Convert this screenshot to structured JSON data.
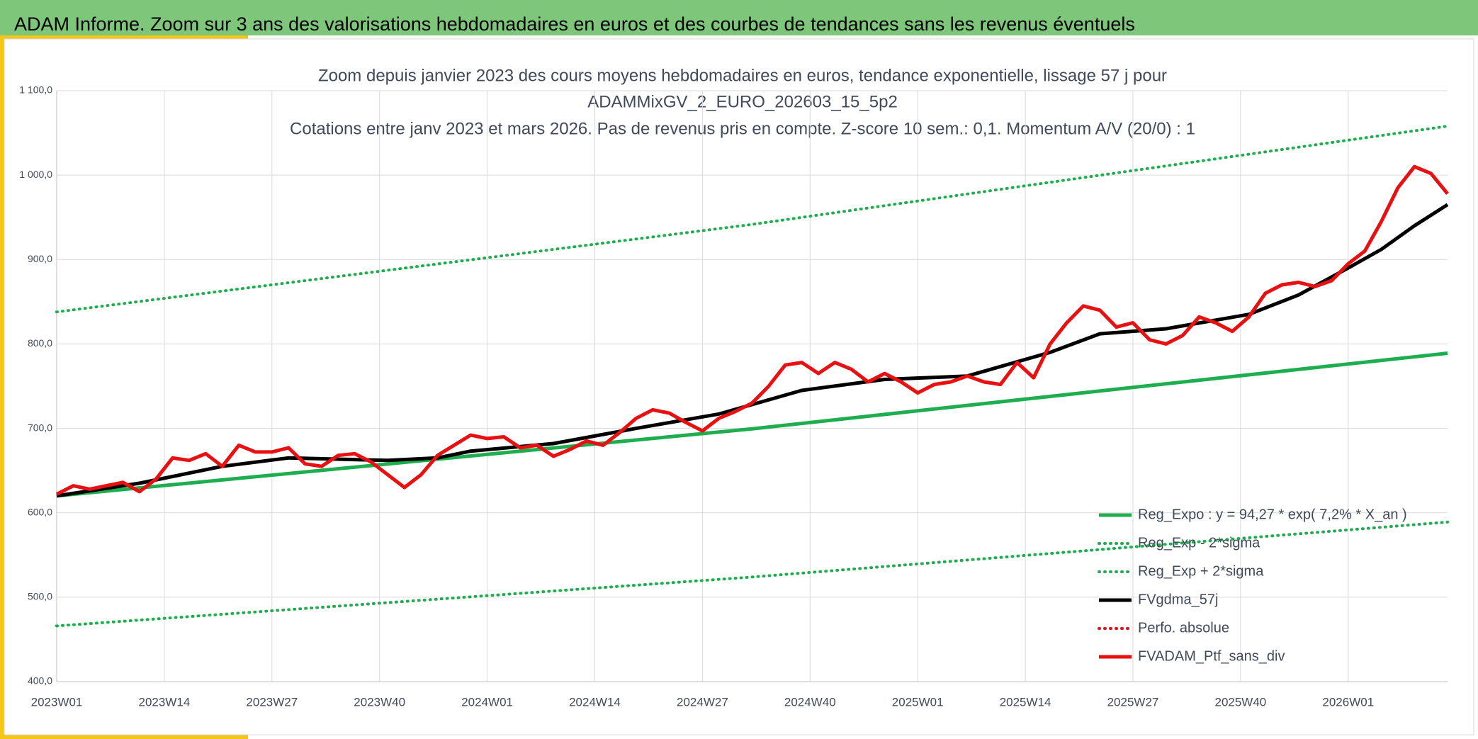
{
  "header": {
    "title": "ADAM Informe. Zoom sur 3 ans des valorisations hebdomadaires en euros et des courbes de tendances sans les revenus éventuels"
  },
  "chart_data": {
    "type": "line",
    "title": [
      "Zoom depuis janvier 2023 des cours moyens hebdomadaires en euros, tendance exponentielle, lissage 57 j pour",
      "ADAMMixGV_2_EURO_202603_15_5p2",
      "Cotations entre janv 2023 et mars 2026. Pas de revenus pris en compte. Z-score 10 sem.: 0,1. Momentum A/V (20/0) : 1"
    ],
    "xlim": [
      0,
      168
    ],
    "xticks": [
      {
        "value": 0,
        "label": "2023W01"
      },
      {
        "value": 13,
        "label": "2023W14"
      },
      {
        "value": 26,
        "label": "2023W27"
      },
      {
        "value": 39,
        "label": "2023W40"
      },
      {
        "value": 52,
        "label": "2024W01"
      },
      {
        "value": 65,
        "label": "2024W14"
      },
      {
        "value": 78,
        "label": "2024W27"
      },
      {
        "value": 91,
        "label": "2024W40"
      },
      {
        "value": 104,
        "label": "2025W01"
      },
      {
        "value": 117,
        "label": "2025W14"
      },
      {
        "value": 130,
        "label": "2025W27"
      },
      {
        "value": 143,
        "label": "2025W40"
      },
      {
        "value": 156,
        "label": "2026W01"
      }
    ],
    "ylim": [
      400,
      1100
    ],
    "yticks": [
      {
        "value": 400,
        "label": "400,0"
      },
      {
        "value": 500,
        "label": "500,0"
      },
      {
        "value": 600,
        "label": "600,0"
      },
      {
        "value": 700,
        "label": "700,0"
      },
      {
        "value": 800,
        "label": "800,0"
      },
      {
        "value": 900,
        "label": "900,0"
      },
      {
        "value": 1000,
        "label": "1 000,0"
      },
      {
        "value": 1100,
        "label": "1 100,0"
      }
    ],
    "grid": true,
    "legend": "bottom-right",
    "series": [
      {
        "name": "Reg_Expo : y = 94,27 * exp( 7,2% *  X_an )",
        "color": "#1fae4f",
        "style": "solid",
        "x": [
          0,
          84,
          168
        ],
        "values": [
          620,
          699.5,
          789
        ]
      },
      {
        "name": "Reg_Exp - 2*sigma",
        "color": "#1fae4f",
        "style": "dotted",
        "x": [
          0,
          84,
          168
        ],
        "values": [
          466,
          523.9,
          589
        ]
      },
      {
        "name": "Reg_Exp + 2*sigma",
        "color": "#1fae4f",
        "style": "dotted",
        "x": [
          0,
          84,
          168
        ],
        "values": [
          838,
          941.6,
          1058
        ]
      },
      {
        "name": "FVgdma_57j",
        "color": "#000000",
        "style": "solid",
        "x": [
          0,
          10,
          20,
          28,
          40,
          46,
          50,
          60,
          70,
          80,
          90,
          100,
          110,
          120,
          126,
          134,
          144,
          150,
          156,
          160,
          164,
          168
        ],
        "values": [
          620,
          635,
          655,
          665,
          662,
          665,
          673,
          682,
          700,
          717,
          745,
          758,
          762,
          790,
          812,
          818,
          835,
          858,
          890,
          912,
          940,
          965
        ]
      },
      {
        "name": "Perfo. absolue",
        "color": "#e81010",
        "style": "dotted",
        "x": [],
        "values": []
      },
      {
        "name": "FVADAM_Ptf_sans_div",
        "color": "#e81010",
        "style": "solid",
        "x": [
          0,
          2,
          4,
          6,
          8,
          10,
          12,
          14,
          16,
          18,
          20,
          22,
          24,
          26,
          28,
          30,
          32,
          34,
          36,
          38,
          40,
          42,
          44,
          46,
          48,
          50,
          52,
          54,
          56,
          58,
          60,
          62,
          64,
          66,
          68,
          70,
          72,
          74,
          76,
          78,
          80,
          82,
          84,
          86,
          88,
          90,
          92,
          94,
          96,
          98,
          100,
          102,
          104,
          106,
          108,
          110,
          112,
          114,
          116,
          118,
          120,
          122,
          124,
          126,
          128,
          130,
          132,
          134,
          136,
          138,
          140,
          142,
          144,
          146,
          148,
          150,
          152,
          154,
          156,
          158,
          160,
          162,
          164,
          166,
          168
        ],
        "values": [
          622,
          632,
          628,
          632,
          636,
          625,
          640,
          665,
          662,
          670,
          655,
          680,
          672,
          672,
          677,
          658,
          655,
          668,
          670,
          660,
          645,
          630,
          645,
          668,
          680,
          692,
          688,
          690,
          677,
          680,
          667,
          675,
          685,
          680,
          695,
          712,
          722,
          718,
          707,
          697,
          712,
          720,
          730,
          750,
          775,
          778,
          765,
          778,
          770,
          755,
          765,
          755,
          742,
          752,
          755,
          762,
          755,
          752,
          778,
          760,
          800,
          825,
          845,
          840,
          820,
          825,
          805,
          800,
          810,
          832,
          825,
          815,
          832,
          860,
          870,
          873,
          868,
          875,
          895,
          910,
          945,
          985,
          1010,
          1002,
          978
        ]
      }
    ]
  }
}
